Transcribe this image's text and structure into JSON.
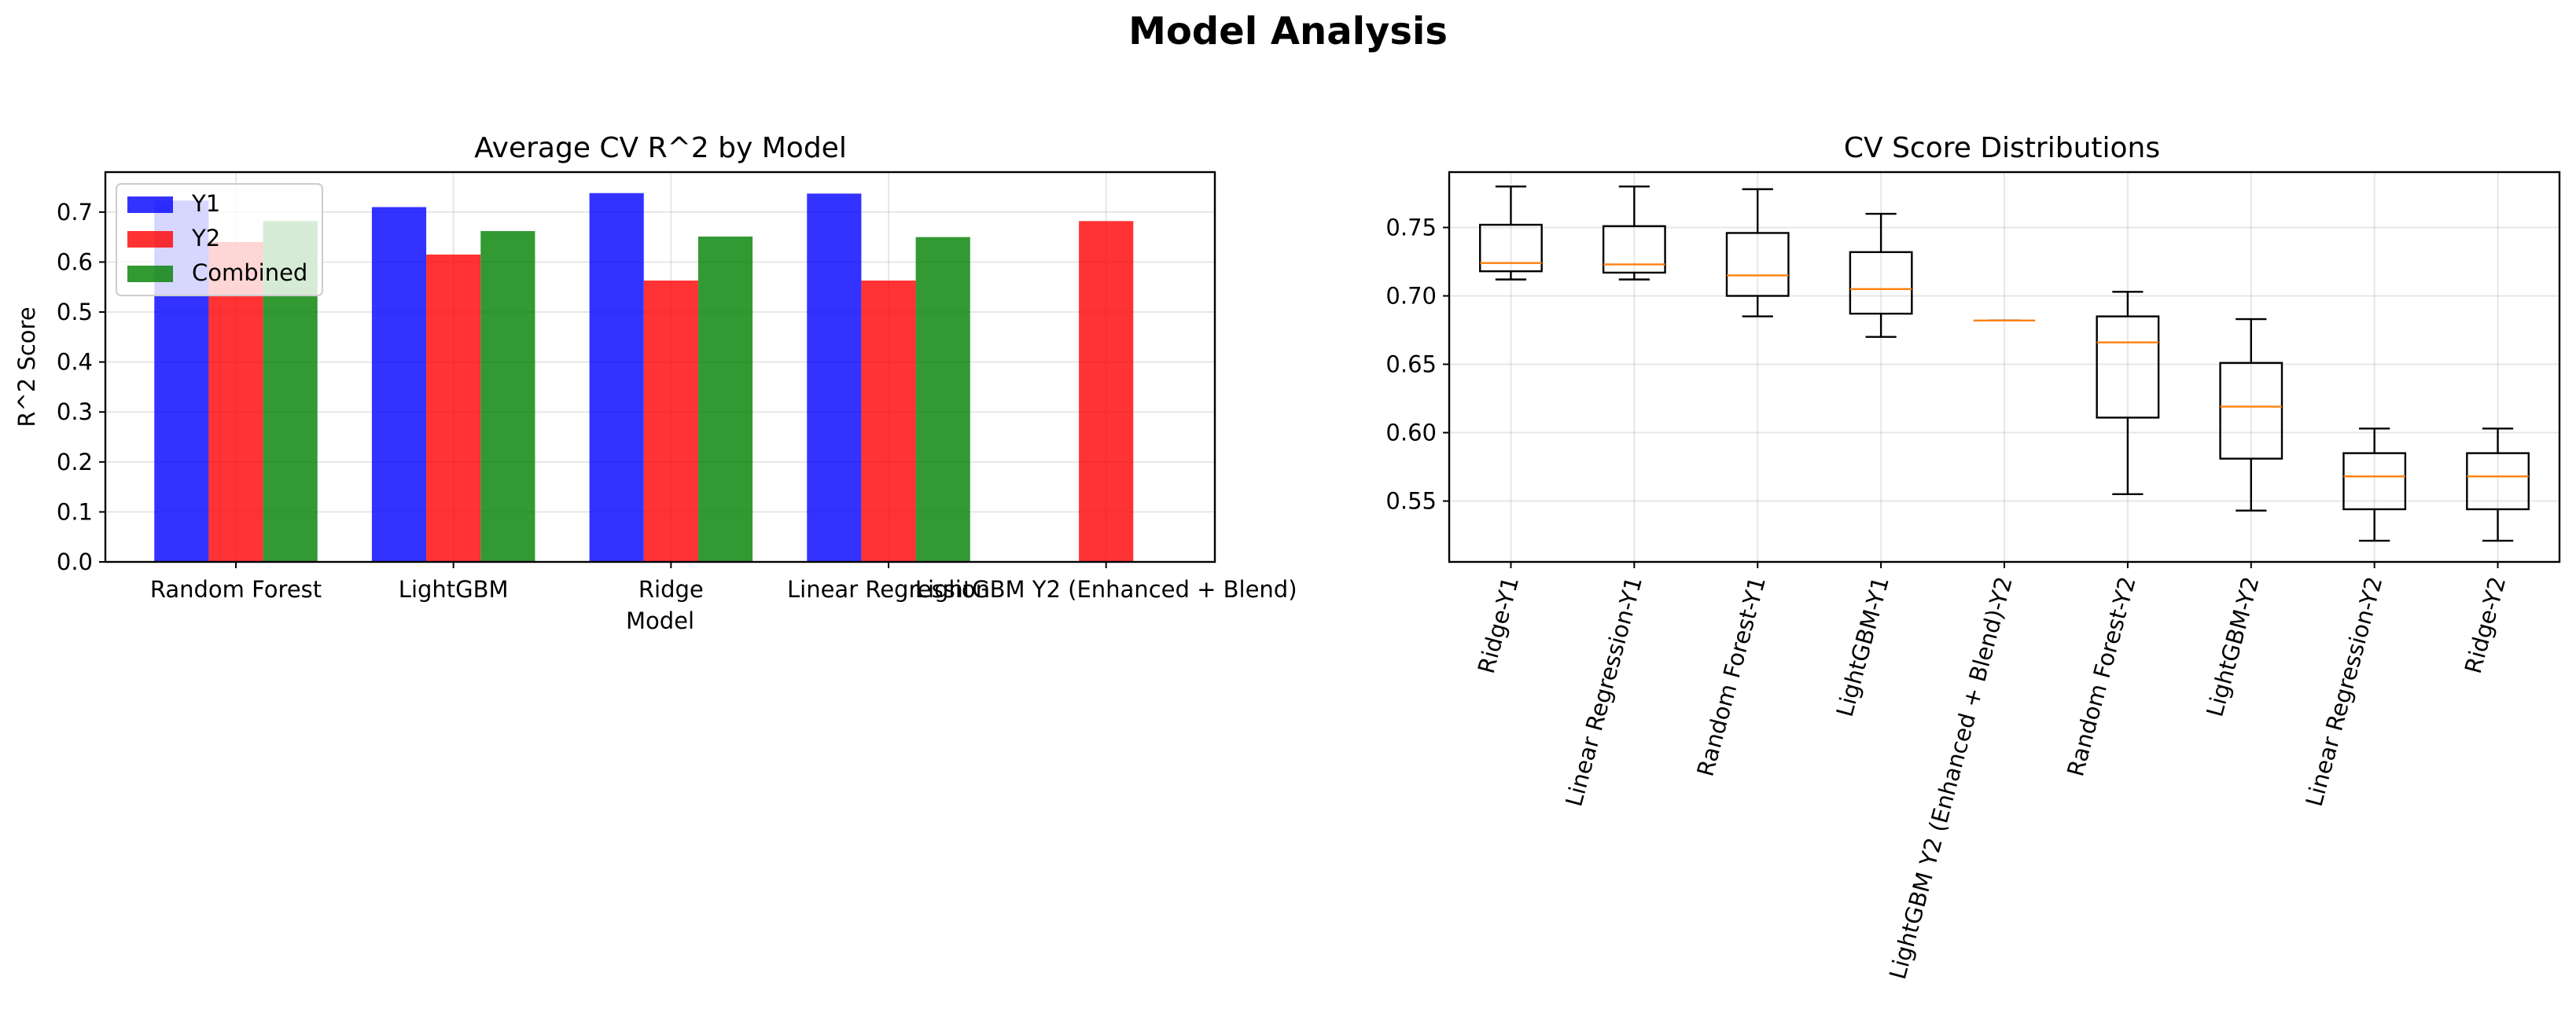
{
  "title": "Model Analysis",
  "chart_data": [
    {
      "type": "bar",
      "title": "Average CV R^2 by Model",
      "xlabel": "Model",
      "ylabel": "R^2 Score",
      "categories": [
        "Random Forest",
        "LightGBM",
        "Ridge",
        "Linear Regression",
        "LightGBM Y2 (Enhanced + Blend)"
      ],
      "series": [
        {
          "name": "Y1",
          "color": "#0000ff",
          "values": [
            0.723,
            0.71,
            0.738,
            0.737,
            null
          ]
        },
        {
          "name": "Y2",
          "color": "#ff0000",
          "values": [
            0.64,
            0.615,
            0.563,
            0.563,
            0.682
          ]
        },
        {
          "name": "Combined",
          "color": "#008000",
          "values": [
            0.682,
            0.662,
            0.651,
            0.65,
            null
          ]
        }
      ],
      "ylim": [
        0,
        0.78
      ],
      "yticks": [
        "0.0",
        "0.1",
        "0.2",
        "0.3",
        "0.4",
        "0.5",
        "0.6",
        "0.7"
      ],
      "grid": true,
      "legend_position": "top-left"
    },
    {
      "type": "box",
      "title": "CV Score Distributions",
      "categories": [
        "Ridge-Y1",
        "Linear Regression-Y1",
        "Random Forest-Y1",
        "LightGBM-Y1",
        "LightGBM Y2 (Enhanced + Blend)-Y2",
        "Random Forest-Y2",
        "LightGBM-Y2",
        "Linear Regression-Y2",
        "Ridge-Y2"
      ],
      "boxes": [
        {
          "whislo": 0.712,
          "q1": 0.718,
          "med": 0.724,
          "q3": 0.752,
          "whishi": 0.78
        },
        {
          "whislo": 0.712,
          "q1": 0.717,
          "med": 0.723,
          "q3": 0.751,
          "whishi": 0.78
        },
        {
          "whislo": 0.685,
          "q1": 0.7,
          "med": 0.715,
          "q3": 0.746,
          "whishi": 0.778
        },
        {
          "whislo": 0.67,
          "q1": 0.687,
          "med": 0.705,
          "q3": 0.732,
          "whishi": 0.76
        },
        {
          "whislo": 0.682,
          "q1": 0.682,
          "med": 0.682,
          "q3": 0.682,
          "whishi": 0.682
        },
        {
          "whislo": 0.555,
          "q1": 0.611,
          "med": 0.666,
          "q3": 0.685,
          "whishi": 0.703
        },
        {
          "whislo": 0.543,
          "q1": 0.581,
          "med": 0.619,
          "q3": 0.651,
          "whishi": 0.683
        },
        {
          "whislo": 0.521,
          "q1": 0.544,
          "med": 0.568,
          "q3": 0.585,
          "whishi": 0.603
        },
        {
          "whislo": 0.521,
          "q1": 0.544,
          "med": 0.568,
          "q3": 0.585,
          "whishi": 0.603
        }
      ],
      "ylim": [
        0.5055,
        0.7905
      ],
      "yticks": [
        "0.55",
        "0.60",
        "0.65",
        "0.70",
        "0.75"
      ],
      "median_color": "#ff7f0e",
      "grid": true
    }
  ]
}
